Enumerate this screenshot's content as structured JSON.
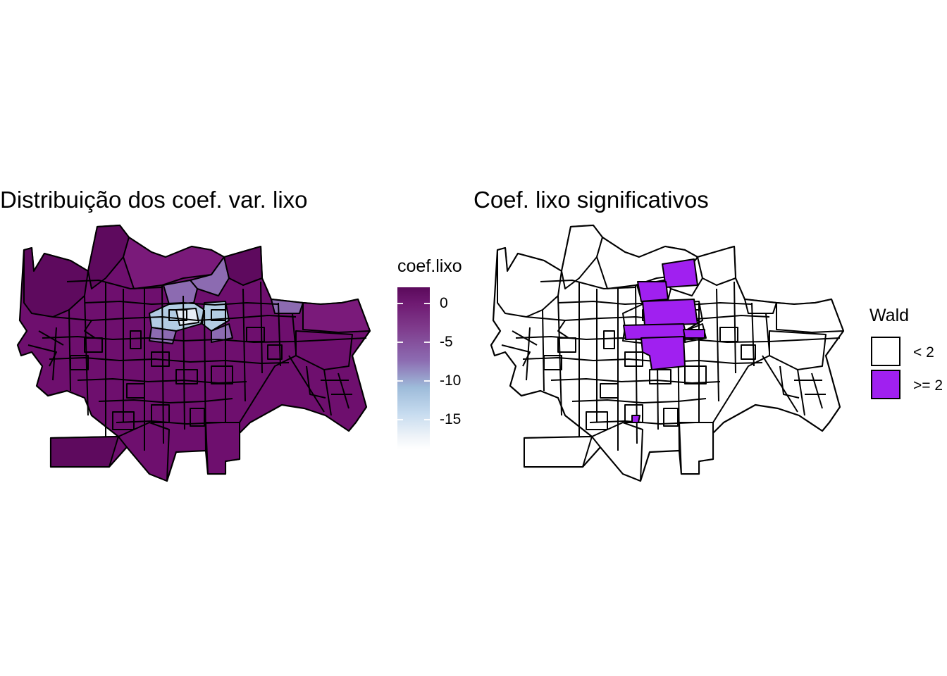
{
  "left_map": {
    "title": "Distribuição dos coef. var. lixo",
    "legend_title": "coef.lixo",
    "legend_ticks": [
      "0",
      "-5",
      "-10",
      "-15"
    ],
    "color_scale": {
      "max_value": 2,
      "min_value": -19,
      "high": "#6b0f6b",
      "mid": "#8c6bb1",
      "low": "#ffffff"
    },
    "fill_colors": {
      "base": "#6e0f6e",
      "dark": "#5e0a5e",
      "medium": "#7a1a7a",
      "light_purple": "#8c6bb1",
      "light_blue": "#b3cde3",
      "pale": "#e6eef7"
    }
  },
  "right_map": {
    "title": "Coef. lixo significativos",
    "legend_title": "Wald",
    "legend_items": [
      {
        "label": "< 2",
        "color": "#ffffff"
      },
      {
        "label": ">= 2",
        "color": "#a020f0"
      }
    ]
  }
}
